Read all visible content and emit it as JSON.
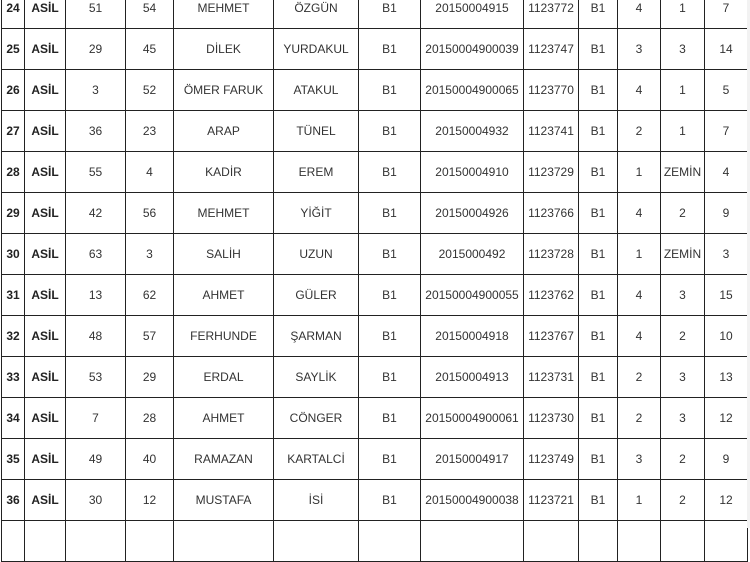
{
  "table": {
    "rows": [
      [
        "24",
        "ASİL",
        "51",
        "54",
        "MEHMET",
        "ÖZGÜN",
        "B1",
        "20150004915",
        "1123772",
        "B1",
        "4",
        "1",
        "7"
      ],
      [
        "25",
        "ASİL",
        "29",
        "45",
        "DİLEK",
        "YURDAKUL",
        "B1",
        "20150004900039",
        "1123747",
        "B1",
        "3",
        "3",
        "14"
      ],
      [
        "26",
        "ASİL",
        "3",
        "52",
        "ÖMER FARUK",
        "ATAKUL",
        "B1",
        "20150004900065",
        "1123770",
        "B1",
        "4",
        "1",
        "5"
      ],
      [
        "27",
        "ASİL",
        "36",
        "23",
        "ARAP",
        "TÜNEL",
        "B1",
        "20150004932",
        "1123741",
        "B1",
        "2",
        "1",
        "7"
      ],
      [
        "28",
        "ASİL",
        "55",
        "4",
        "KADİR",
        "EREM",
        "B1",
        "20150004910",
        "1123729",
        "B1",
        "1",
        "ZEMİN",
        "4"
      ],
      [
        "29",
        "ASİL",
        "42",
        "56",
        "MEHMET",
        "YİĞİT",
        "B1",
        "20150004926",
        "1123766",
        "B1",
        "4",
        "2",
        "9"
      ],
      [
        "30",
        "ASİL",
        "63",
        "3",
        "SALİH",
        "UZUN",
        "B1",
        "2015000492",
        "1123728",
        "B1",
        "1",
        "ZEMİN",
        "3"
      ],
      [
        "31",
        "ASİL",
        "13",
        "62",
        "AHMET",
        "GÜLER",
        "B1",
        "20150004900055",
        "1123762",
        "B1",
        "4",
        "3",
        "15"
      ],
      [
        "32",
        "ASİL",
        "48",
        "57",
        "FERHUNDE",
        "ŞARMAN",
        "B1",
        "20150004918",
        "1123767",
        "B1",
        "4",
        "2",
        "10"
      ],
      [
        "33",
        "ASİL",
        "53",
        "29",
        "ERDAL",
        "SAYLİK",
        "B1",
        "20150004913",
        "1123731",
        "B1",
        "2",
        "3",
        "13"
      ],
      [
        "34",
        "ASİL",
        "7",
        "28",
        "AHMET",
        "CÖNGER",
        "B1",
        "20150004900061",
        "1123730",
        "B1",
        "2",
        "3",
        "12"
      ],
      [
        "35",
        "ASİL",
        "49",
        "40",
        "RAMAZAN",
        "KARTALCİ",
        "B1",
        "20150004917",
        "1123749",
        "B1",
        "3",
        "2",
        "9"
      ],
      [
        "36",
        "ASİL",
        "30",
        "12",
        "MUSTAFA",
        "İSİ",
        "B1",
        "20150004900038",
        "1123721",
        "B1",
        "1",
        "2",
        "12"
      ],
      [
        "",
        "",
        "",
        "",
        "",
        "",
        "",
        "",
        "",
        "",
        "",
        "",
        ""
      ]
    ]
  }
}
